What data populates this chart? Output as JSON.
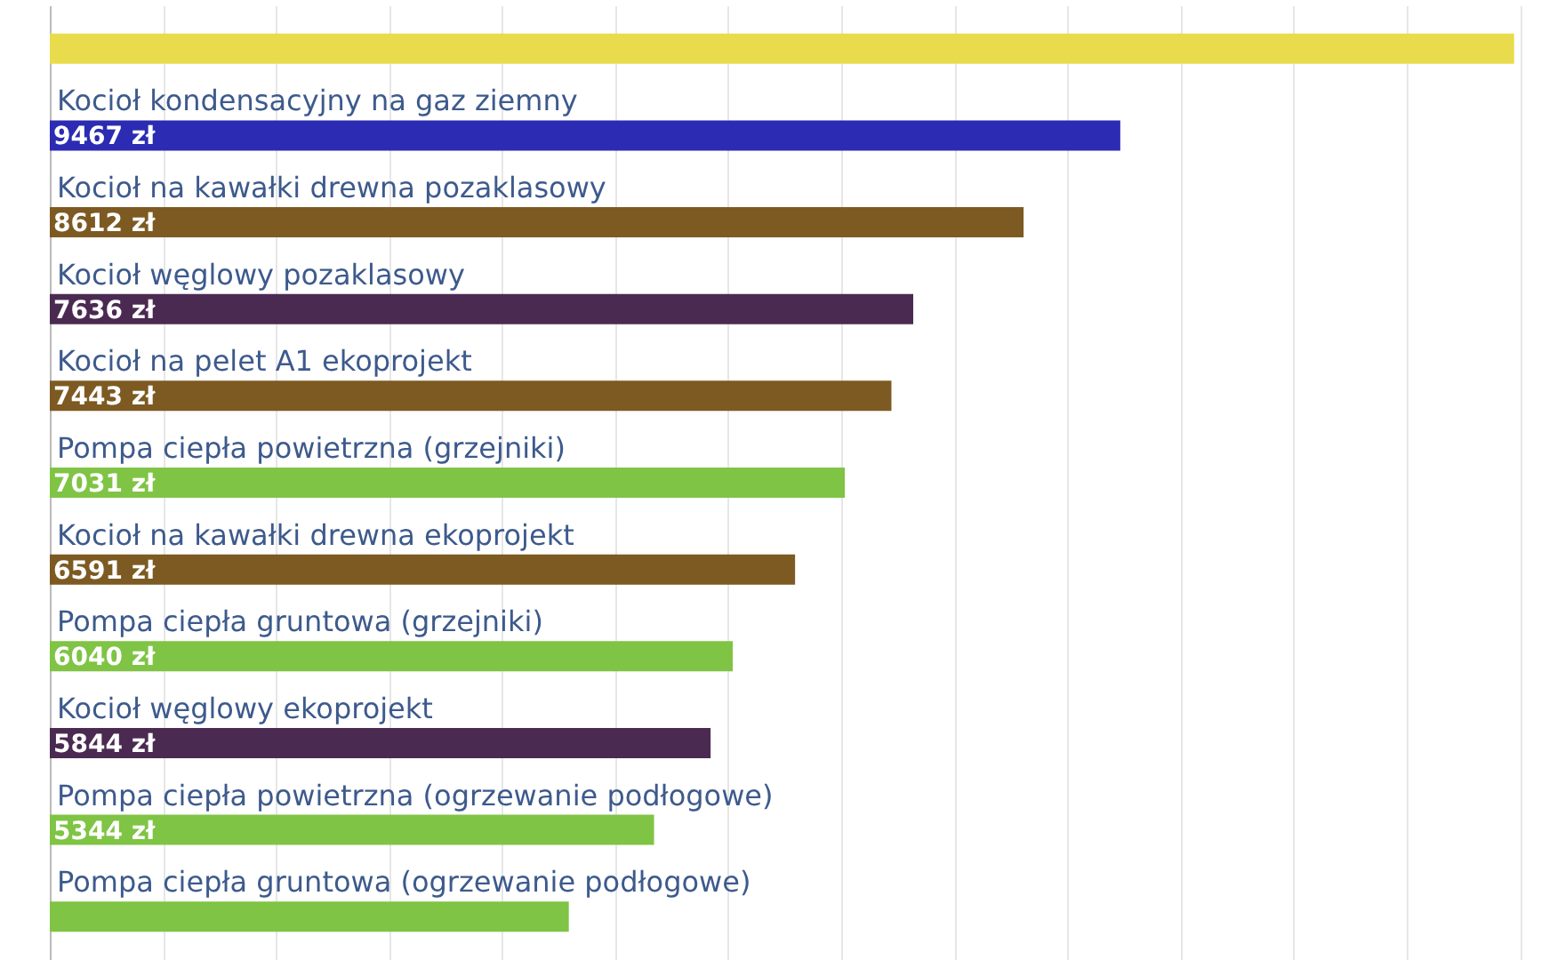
{
  "chart_data": {
    "type": "bar",
    "orientation": "horizontal",
    "categories": [
      null,
      "Kocioł kondensacyjny na gaz ziemny",
      "Kocioł na kawałki drewna pozaklasowy",
      "Kocioł węglowy pozaklasowy",
      "Kocioł na pelet A1 ekoprojekt",
      "Pompa ciepła powietrzna (grzejniki)",
      "Kocioł na kawałki drewna ekoprojekt",
      "Pompa ciepła gruntowa (grzejniki)",
      "Kocioł węglowy ekoprojekt",
      "Pompa ciepła powietrzna (ogrzewanie podłogowe)",
      "Pompa ciepła gruntowa (ogrzewanie podłogowe)"
    ],
    "values": [
      12950,
      9467,
      8612,
      7636,
      7443,
      7031,
      6591,
      6040,
      5844,
      5344,
      4590
    ],
    "value_labels": [
      null,
      "9467 zł",
      "8612 zł",
      "7636 zł",
      "7443 zł",
      "7031 zł",
      "6591 zł",
      "6040 zł",
      "5844 zł",
      "5344 zł",
      null
    ],
    "colors": [
      "#e8dc4c",
      "#2b2bb3",
      "#7d5a22",
      "#4b2a52",
      "#7d5a22",
      "#7fc444",
      "#7d5a22",
      "#7fc444",
      "#4b2a52",
      "#7fc444",
      "#7fc444"
    ],
    "xlim": [
      0,
      13400
    ],
    "xticks": [
      {
        "value": 0,
        "label": null
      },
      {
        "value": 1000,
        "label": null
      },
      {
        "value": 2000,
        "label": null
      },
      {
        "value": 3000,
        "label": null
      },
      {
        "value": 4000,
        "label": null
      },
      {
        "value": 5000,
        "label": null
      },
      {
        "value": 6000,
        "label": null
      },
      {
        "value": 7000,
        "label": null
      },
      {
        "value": 8000,
        "label": null
      },
      {
        "value": 9000,
        "label": null
      },
      {
        "value": 10000,
        "label": null
      },
      {
        "value": 11000,
        "label": null
      },
      {
        "value": 12000,
        "label": null
      },
      {
        "value": 13000,
        "label": null
      }
    ],
    "grid": "x",
    "tick_labels": false
  }
}
